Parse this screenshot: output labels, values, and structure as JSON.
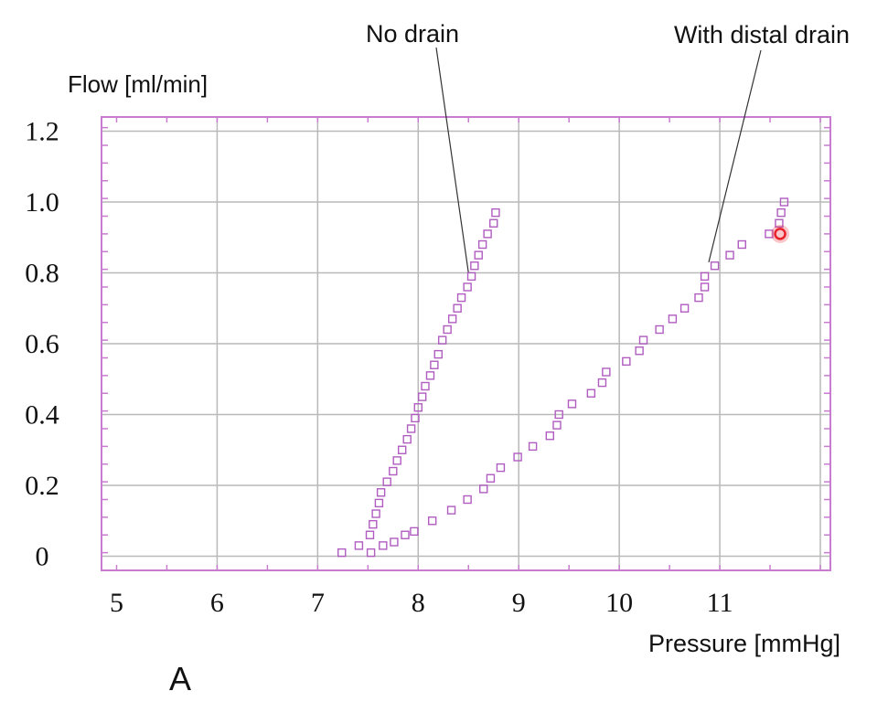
{
  "panel_label": "A",
  "colors": {
    "frame": "#c77ccf",
    "grid": "#b9b9b9",
    "marker": "#b05cc0",
    "cursor": "#e8202a"
  },
  "chart_data": {
    "type": "scatter",
    "xlabel": "Pressure [mmHg]",
    "ylabel": "Flow [ml/min]",
    "xlim": [
      4.85,
      12.1
    ],
    "ylim": [
      -0.04,
      1.24
    ],
    "x_ticks": [
      5,
      6,
      7,
      8,
      9,
      10,
      11
    ],
    "y_ticks": [
      0,
      0.2,
      0.4,
      0.6,
      0.8,
      1.0,
      1.2
    ],
    "y_tick_labels": [
      "0",
      "0.2",
      "0.4",
      "0.6",
      "0.8",
      "1.0",
      "1.2"
    ],
    "x_grid": [
      6,
      7,
      8,
      9,
      10,
      11,
      12
    ],
    "grid": true,
    "marker": "open-square",
    "series": [
      {
        "name": "No drain",
        "points": [
          [
            7.24,
            0.01
          ],
          [
            7.41,
            0.03
          ],
          [
            7.52,
            0.06
          ],
          [
            7.55,
            0.09
          ],
          [
            7.58,
            0.12
          ],
          [
            7.61,
            0.15
          ],
          [
            7.63,
            0.18
          ],
          [
            7.69,
            0.21
          ],
          [
            7.75,
            0.24
          ],
          [
            7.79,
            0.27
          ],
          [
            7.84,
            0.3
          ],
          [
            7.89,
            0.33
          ],
          [
            7.93,
            0.36
          ],
          [
            7.97,
            0.39
          ],
          [
            8.0,
            0.42
          ],
          [
            8.04,
            0.45
          ],
          [
            8.07,
            0.48
          ],
          [
            8.12,
            0.51
          ],
          [
            8.16,
            0.54
          ],
          [
            8.2,
            0.57
          ],
          [
            8.24,
            0.61
          ],
          [
            8.29,
            0.64
          ],
          [
            8.34,
            0.67
          ],
          [
            8.39,
            0.7
          ],
          [
            8.43,
            0.73
          ],
          [
            8.49,
            0.76
          ],
          [
            8.53,
            0.79
          ],
          [
            8.56,
            0.82
          ],
          [
            8.6,
            0.85
          ],
          [
            8.64,
            0.88
          ],
          [
            8.69,
            0.91
          ],
          [
            8.75,
            0.94
          ],
          [
            8.77,
            0.97
          ]
        ]
      },
      {
        "name": "With distal drain",
        "points": [
          [
            7.53,
            0.01
          ],
          [
            7.65,
            0.03
          ],
          [
            7.76,
            0.04
          ],
          [
            7.87,
            0.06
          ],
          [
            7.96,
            0.07
          ],
          [
            8.14,
            0.1
          ],
          [
            8.33,
            0.13
          ],
          [
            8.49,
            0.16
          ],
          [
            8.65,
            0.19
          ],
          [
            8.72,
            0.22
          ],
          [
            8.82,
            0.25
          ],
          [
            8.99,
            0.28
          ],
          [
            9.14,
            0.31
          ],
          [
            9.31,
            0.34
          ],
          [
            9.38,
            0.37
          ],
          [
            9.4,
            0.4
          ],
          [
            9.53,
            0.43
          ],
          [
            9.72,
            0.46
          ],
          [
            9.83,
            0.49
          ],
          [
            9.87,
            0.52
          ],
          [
            10.07,
            0.55
          ],
          [
            10.2,
            0.58
          ],
          [
            10.24,
            0.61
          ],
          [
            10.4,
            0.64
          ],
          [
            10.53,
            0.67
          ],
          [
            10.65,
            0.7
          ],
          [
            10.79,
            0.73
          ],
          [
            10.85,
            0.76
          ],
          [
            10.85,
            0.79
          ],
          [
            10.95,
            0.82
          ],
          [
            11.1,
            0.85
          ],
          [
            11.22,
            0.88
          ],
          [
            11.49,
            0.91
          ],
          [
            11.59,
            0.94
          ],
          [
            11.61,
            0.97
          ],
          [
            11.64,
            1.0
          ]
        ]
      }
    ],
    "annotations": [
      {
        "text": "No drain",
        "series": "No drain"
      },
      {
        "text": "With distal drain",
        "series": "With distal drain"
      }
    ],
    "highlight_point": [
      11.6,
      0.91
    ]
  }
}
